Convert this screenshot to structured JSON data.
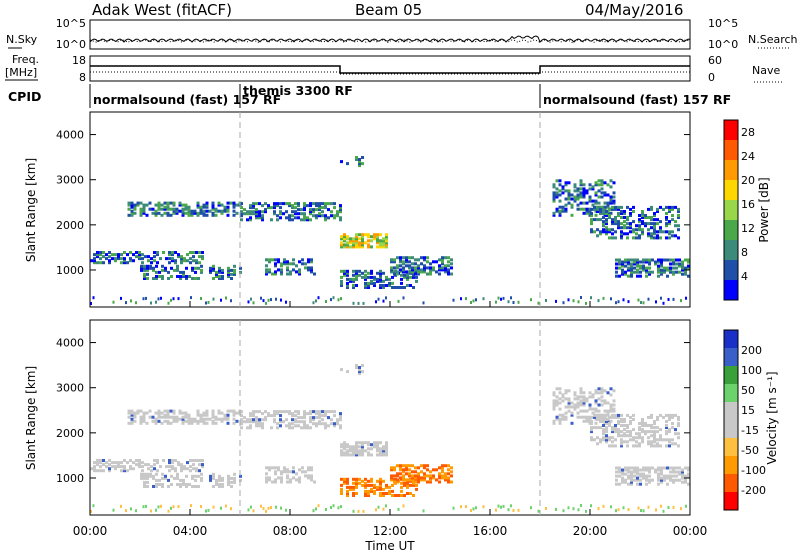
{
  "header": {
    "station": "Adak West (fitACF)",
    "beam": "Beam 05",
    "date": "04/May/2016"
  },
  "labels": {
    "nsky": "N.Sky",
    "nsearch": "N.Search",
    "freq_line1": "Freq.",
    "freq_line2": "[MHz]",
    "nave": "Nave",
    "cpid": "CPID",
    "noise_tick_high": "10^5",
    "noise_tick_low": "10^0",
    "freq_tick_high": "18",
    "freq_tick_low": "8",
    "nave_tick_high": "60",
    "nave_tick_low": "0"
  },
  "cpid_segments": [
    {
      "label": "normalsound (fast) 157 RF",
      "start_hour": 0
    },
    {
      "label": "themis 3300 RF",
      "start_hour": 6
    },
    {
      "label": "normalsound (fast) 157 RF",
      "start_hour": 18
    }
  ],
  "colors": {
    "power": [
      "#0000ff",
      "#1f4fa8",
      "#3c8a7a",
      "#4aa84a",
      "#9ad64a",
      "#ffd700",
      "#ff9a00",
      "#ff5a00",
      "#ff0000"
    ],
    "velocity": [
      "#ff0000",
      "#ff5a00",
      "#ff9a00",
      "#ffc040",
      "#c8c8c8",
      "#c8c8c8",
      "#6cd26c",
      "#3aa03a",
      "#3a5fc8",
      "#1a2fc8"
    ]
  },
  "chart_data": [
    {
      "type": "heatmap",
      "name": "power",
      "ylabel": "Slant Range [km]",
      "yticks": [
        "1000",
        "2000",
        "3000",
        "4000"
      ],
      "ylim": [
        180,
        4500
      ],
      "colorbar_label": "Power [dB]",
      "colorbar_ticks": [
        "4",
        "8",
        "12",
        "16",
        "20",
        "24",
        "28"
      ],
      "colorbar_range": [
        0,
        30
      ]
    },
    {
      "type": "heatmap",
      "name": "velocity",
      "ylabel": "Slant Range [km]",
      "yticks": [
        "1000",
        "2000",
        "3000",
        "4000"
      ],
      "ylim": [
        180,
        4500
      ],
      "colorbar_label": "Velocity [m s⁻¹]",
      "colorbar_ticks": [
        "200",
        "100",
        "50",
        "15",
        "-15",
        "-50",
        "-100",
        "-200"
      ],
      "xlabel": "Time UT",
      "xticks": [
        "00:00",
        "04:00",
        "08:00",
        "12:00",
        "16:00",
        "20:00",
        "00:00"
      ],
      "xlim_hours": [
        0,
        24
      ]
    }
  ]
}
